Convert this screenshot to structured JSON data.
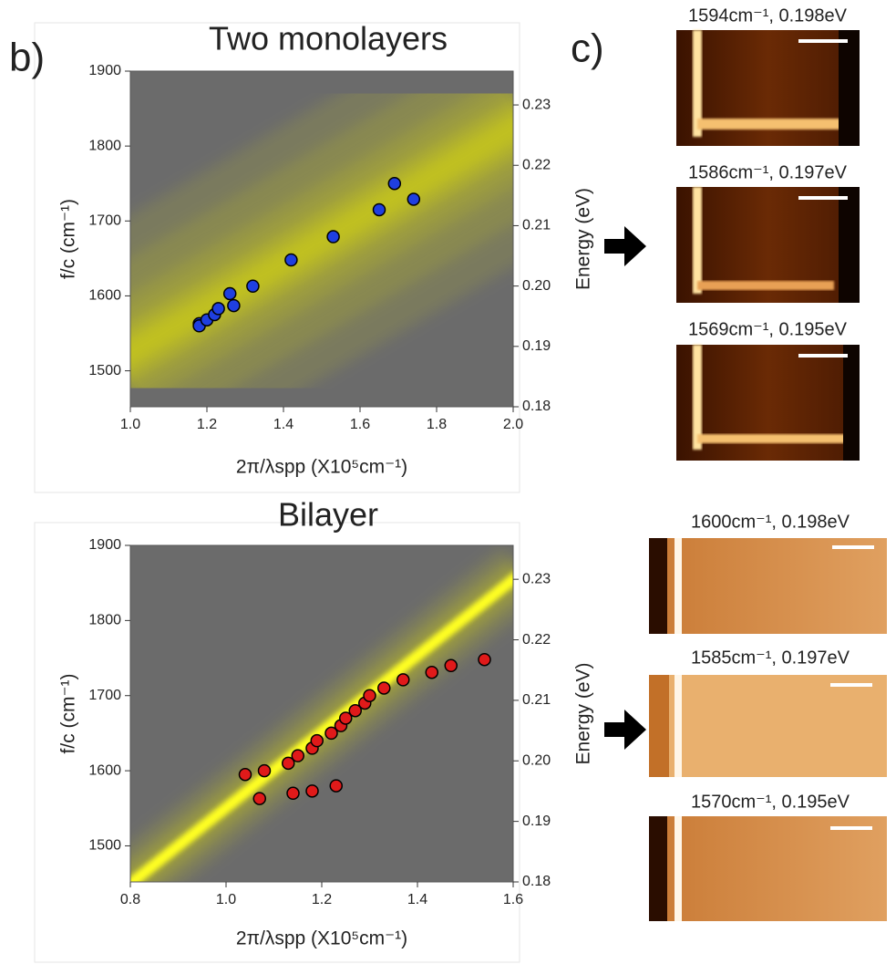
{
  "panel_labels": [
    "b)",
    "c)"
  ],
  "image_captions": [
    "1594cm⁻¹, 0.198eV",
    "1586cm⁻¹, 0.197eV",
    "1569cm⁻¹, 0.195eV",
    "1600cm⁻¹, 0.198eV",
    "1585cm⁻¹, 0.197eV",
    "1570cm⁻¹, 0.195eV"
  ],
  "chart_data": [
    {
      "type": "scatter",
      "title": "Two monolayers",
      "xlabel": "2π/λspp (X10⁵cm⁻¹)",
      "ylabel": "f/c (cm⁻¹)",
      "y2label": "Energy (eV)",
      "xlim": [
        1.0,
        2.0
      ],
      "xticks": [
        {
          "value": 1.0,
          "label": "1.0"
        },
        1.2,
        1.4,
        1.6,
        1.8,
        {
          "value": 2.0,
          "label": "2.0"
        }
      ],
      "ylim": [
        1452,
        1900
      ],
      "yticks": [
        1500,
        1600,
        1700,
        1800,
        1900
      ],
      "y2lim": [
        0.18,
        0.2356
      ],
      "y2ticks": [
        {
          "value": 0.18,
          "label": "0.18"
        },
        0.19,
        {
          "value": 0.2,
          "label": "0.20"
        },
        0.21,
        0.22,
        0.23
      ],
      "series": [
        {
          "color": "#1f3fe0",
          "x": [
            1.18,
            1.18,
            1.2,
            1.22,
            1.23,
            1.26,
            1.27,
            1.32,
            1.42,
            1.53,
            1.65,
            1.69,
            1.74
          ],
          "values": [
            1563,
            1560,
            1568,
            1575,
            1583,
            1603,
            1587,
            1613,
            1648,
            1679,
            1715,
            1750,
            1729
          ]
        }
      ]
    },
    {
      "type": "scatter",
      "title": "Bilayer",
      "xlabel": "2π/λspp (X10⁵cm⁻¹)",
      "ylabel": "f/c (cm⁻¹)",
      "y2label": "Energy (eV)",
      "xlim": [
        0.8,
        1.6
      ],
      "xticks": [
        0.8,
        {
          "value": 1.0,
          "label": "1.0"
        },
        1.2,
        1.4,
        1.6
      ],
      "ylim": [
        1452,
        1900
      ],
      "yticks": [
        1500,
        1600,
        1700,
        1800,
        1900
      ],
      "y2lim": [
        0.18,
        0.2356
      ],
      "y2ticks": [
        {
          "value": 0.18,
          "label": "0.18"
        },
        0.19,
        {
          "value": 0.2,
          "label": "0.20"
        },
        0.21,
        0.22,
        0.23
      ],
      "series": [
        {
          "color": "#e01a1a",
          "x": [
            1.04,
            1.08,
            1.13,
            1.15,
            1.18,
            1.19,
            1.22,
            1.24,
            1.25,
            1.27,
            1.29,
            1.3,
            1.33,
            1.37,
            1.43,
            1.47,
            1.54,
            1.07,
            1.14,
            1.18,
            1.23
          ],
          "values": [
            1595,
            1600,
            1610,
            1620,
            1630,
            1640,
            1650,
            1660,
            1670,
            1680,
            1690,
            1700,
            1710,
            1721,
            1731,
            1740,
            1748,
            1563,
            1570,
            1573,
            1580
          ]
        }
      ]
    }
  ]
}
